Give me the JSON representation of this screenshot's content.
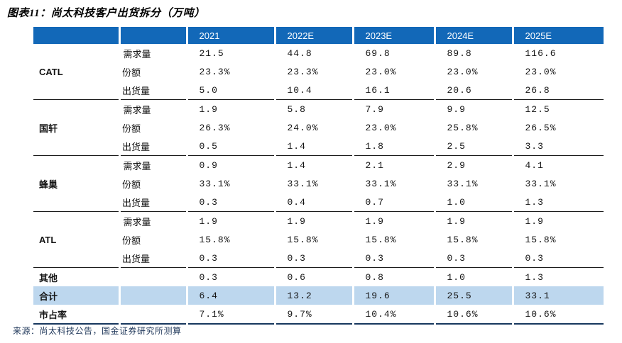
{
  "title": "图表11：尚太科技客户出货拆分（万吨）",
  "source": "来源：尚太科技公告，国金证券研究所测算",
  "colors": {
    "header_bg": "#1268B8",
    "highlight_bg": "#BDD7EE",
    "bottom_line": "#17375E",
    "section_line": "#1A1A1A",
    "source_text": "#253C5E"
  },
  "table": {
    "year_headers": [
      "2021",
      "2022E",
      "2023E",
      "2024E",
      "2025E"
    ],
    "metric_labels": [
      "需求量",
      "份额",
      "出货量"
    ],
    "groups": [
      {
        "name": "CATL",
        "rows": [
          [
            "21.5",
            "44.8",
            "69.8",
            "89.8",
            "116.6"
          ],
          [
            "23.3%",
            "23.3%",
            "23.0%",
            "23.0%",
            "23.0%"
          ],
          [
            "5.0",
            "10.4",
            "16.1",
            "20.6",
            "26.8"
          ]
        ]
      },
      {
        "name": "国轩",
        "rows": [
          [
            "1.9",
            "5.8",
            "7.9",
            "9.9",
            "12.5"
          ],
          [
            "26.3%",
            "24.0%",
            "23.0%",
            "25.8%",
            "26.5%"
          ],
          [
            "0.5",
            "1.4",
            "1.8",
            "2.5",
            "3.3"
          ]
        ]
      },
      {
        "name": "蜂巢",
        "rows": [
          [
            "0.9",
            "1.4",
            "2.1",
            "2.9",
            "4.1"
          ],
          [
            "33.1%",
            "33.1%",
            "33.1%",
            "33.1%",
            "33.1%"
          ],
          [
            "0.3",
            "0.4",
            "0.7",
            "1.0",
            "1.3"
          ]
        ]
      },
      {
        "name": "ATL",
        "rows": [
          [
            "1.9",
            "1.9",
            "1.9",
            "1.9",
            "1.9"
          ],
          [
            "15.8%",
            "15.8%",
            "15.8%",
            "15.8%",
            "15.8%"
          ],
          [
            "0.3",
            "0.3",
            "0.3",
            "0.3",
            "0.3"
          ]
        ]
      }
    ],
    "summary": [
      {
        "label": "其他",
        "highlight": false,
        "values": [
          "0.3",
          "0.6",
          "0.8",
          "1.0",
          "1.3"
        ]
      },
      {
        "label": "合计",
        "highlight": true,
        "values": [
          "6.4",
          "13.2",
          "19.6",
          "25.5",
          "33.1"
        ]
      },
      {
        "label": "市占率",
        "highlight": false,
        "values": [
          "7.1%",
          "9.7%",
          "10.4%",
          "10.6%",
          "10.6%"
        ]
      }
    ]
  }
}
